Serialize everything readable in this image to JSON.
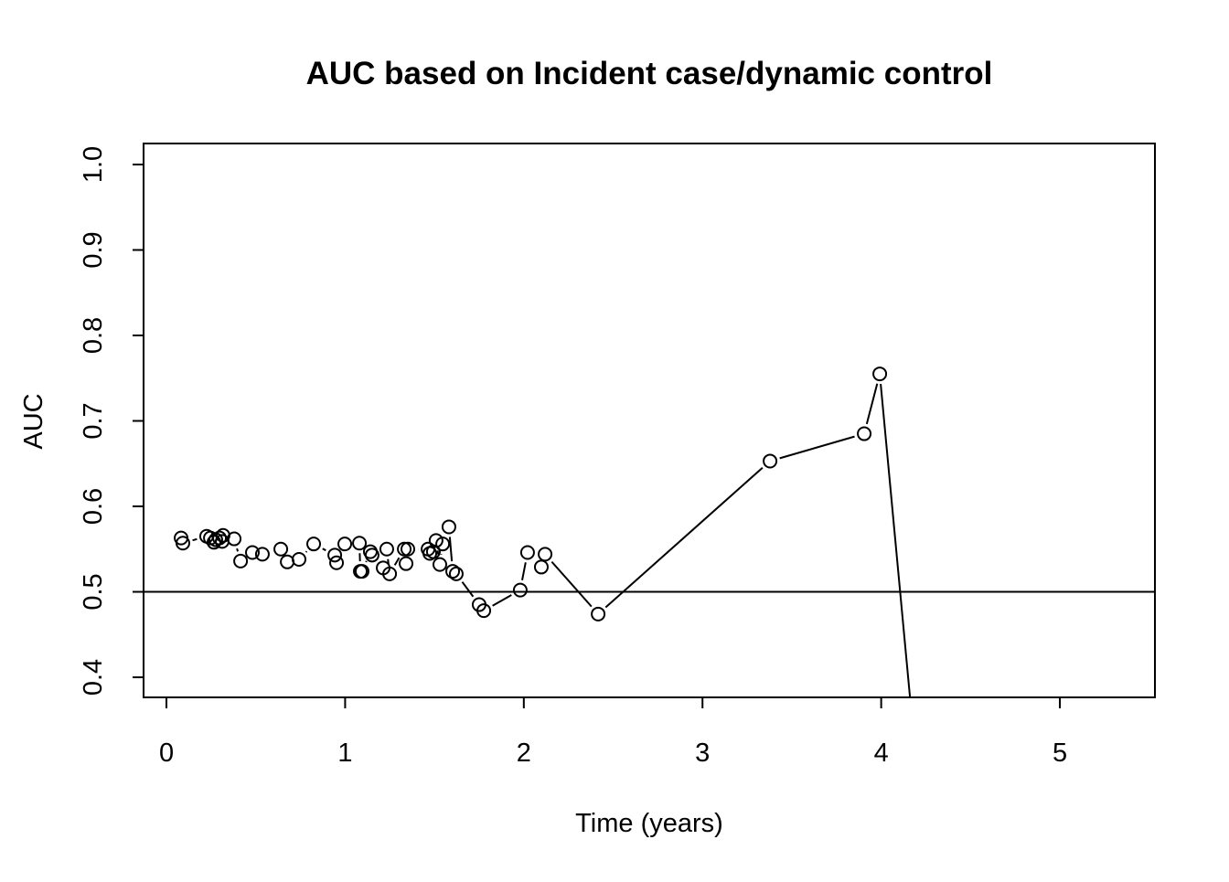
{
  "chart_data": {
    "type": "line",
    "marker": "circle",
    "title": "AUC based on Incident case/dynamic control",
    "xlabel": "Time (years)",
    "ylabel": "AUC",
    "x": [
      0.082,
      0.092,
      0.225,
      0.246,
      0.266,
      0.276,
      0.297,
      0.312,
      0.317,
      0.379,
      0.415,
      0.481,
      0.537,
      0.64,
      0.676,
      0.742,
      0.824,
      0.942,
      0.952,
      0.998,
      1.08,
      1.085,
      1.095,
      1.141,
      1.151,
      1.213,
      1.233,
      1.249,
      1.331,
      1.341,
      1.351,
      1.464,
      1.474,
      1.494,
      1.509,
      1.53,
      1.546,
      1.581,
      1.602,
      1.622,
      1.75,
      1.776,
      1.98,
      2.021,
      2.098,
      2.119,
      2.416,
      3.378,
      3.905,
      3.992,
      4.2
    ],
    "values": [
      0.563,
      0.557,
      0.565,
      0.563,
      0.558,
      0.561,
      0.563,
      0.559,
      0.566,
      0.562,
      0.536,
      0.546,
      0.544,
      0.55,
      0.535,
      0.538,
      0.556,
      0.543,
      0.534,
      0.556,
      0.557,
      0.524,
      0.524,
      0.547,
      0.543,
      0.528,
      0.55,
      0.521,
      0.55,
      0.533,
      0.55,
      0.55,
      0.545,
      0.547,
      0.56,
      0.532,
      0.556,
      0.576,
      0.524,
      0.521,
      0.485,
      0.478,
      0.502,
      0.546,
      0.529,
      0.544,
      0.474,
      0.653,
      0.685,
      0.755,
      0.29
    ],
    "color": "#000000",
    "hline": 0.5,
    "xlim": [
      -0.128,
      5.532
    ],
    "ylim": [
      0.3765,
      1.0246
    ],
    "xticks": [
      0,
      1,
      2,
      3,
      4,
      5
    ],
    "yticks": [
      0.4,
      0.5,
      0.6,
      0.7,
      0.8,
      0.9,
      {
        "value": 1,
        "label": "1.0"
      }
    ]
  }
}
